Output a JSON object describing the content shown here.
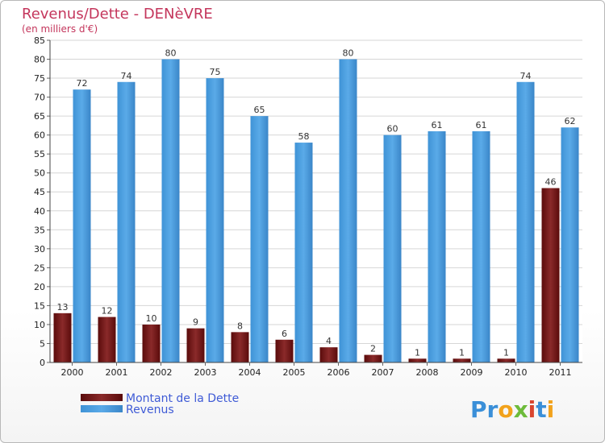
{
  "chart_data": {
    "type": "bar",
    "title": "Revenus/Dette - DENèVRE",
    "subtitle": "(en milliers d'€)",
    "categories": [
      "2000",
      "2001",
      "2002",
      "2003",
      "2004",
      "2005",
      "2006",
      "2007",
      "2008",
      "2009",
      "2010",
      "2011"
    ],
    "series": [
      {
        "name": "Montant de la Dette",
        "color": "#7a1c1c",
        "values": [
          13,
          12,
          10,
          9,
          8,
          6,
          4,
          2,
          1,
          1,
          1,
          46
        ]
      },
      {
        "name": "Revenus",
        "color": "#4a9fe0",
        "values": [
          72,
          74,
          80,
          75,
          65,
          58,
          80,
          60,
          61,
          61,
          74,
          62
        ]
      }
    ],
    "ylim": [
      0,
      85
    ],
    "yticks": [
      0,
      5,
      10,
      15,
      20,
      25,
      30,
      35,
      40,
      45,
      50,
      55,
      60,
      65,
      70,
      75,
      80,
      85
    ],
    "grid": true,
    "legend_position": "bottom-left"
  },
  "logo": {
    "text": "Proxiti"
  }
}
